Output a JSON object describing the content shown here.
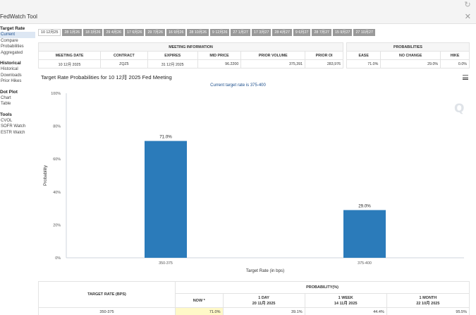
{
  "app": {
    "title": "FedWatch Tool",
    "refresh_icon": "refresh-icon",
    "close_icon": "close-icon"
  },
  "sidebar": {
    "sections": [
      {
        "heading": "Target Rate",
        "items": [
          "Current",
          "Compare",
          "Probabilities",
          "Aggregated"
        ],
        "active": "Current"
      },
      {
        "heading": "Historical",
        "items": [
          "Historical",
          "Downloads",
          "Prior Hikes"
        ]
      },
      {
        "heading": "Dot Plot",
        "items": [
          "Chart",
          "Table"
        ]
      },
      {
        "heading": "Tools",
        "items": [
          "CVOL",
          "SOFR Watch",
          "ESTR Watch"
        ]
      }
    ]
  },
  "tabs": [
    "10 12月25",
    "28 1月26",
    "18 3月26",
    "29 4月26",
    "17 6月26",
    "29 7月26",
    "16 9月26",
    "28 10月26",
    "9 12月26",
    "27 1月27",
    "17 3月27",
    "28 4月27",
    "9 6月27",
    "28 7月27",
    "15 9月27",
    "27 10月27"
  ],
  "active_tab": "10 12月25",
  "meeting_info": {
    "heading": "MEETING INFORMATION",
    "columns": [
      "MEETING DATE",
      "CONTRACT",
      "EXPIRES",
      "MID PRICE",
      "PRIOR VOLUME",
      "PRIOR OI"
    ],
    "row": [
      "10 12月 2025",
      "ZQZ5",
      "31 12月 2025",
      "96.2200",
      "375,391",
      "283,976"
    ]
  },
  "probabilities": {
    "heading": "PROBABILITIES",
    "columns": [
      "EASE",
      "NO CHANGE",
      "HIKE"
    ],
    "row": [
      "71.0%",
      "29.0%",
      "0.0%"
    ]
  },
  "chart": {
    "title": "Target Rate Probabilities for 10 12月 2025 Fed Meeting",
    "subtitle": "Current target rate is 375-400",
    "menu_icon": "menu-icon",
    "logo": "Q"
  },
  "chart_data": {
    "type": "bar",
    "categories": [
      "350-375",
      "375-400"
    ],
    "values": [
      71.0,
      29.0
    ],
    "data_labels": [
      "71.0%",
      "29.0%"
    ],
    "title": "Target Rate Probabilities for 10 12月 2025 Fed Meeting",
    "subtitle": "Current target rate is 375-400",
    "xlabel": "Target Rate (in bps)",
    "ylabel": "Probability",
    "ylim": [
      0,
      100
    ],
    "yticks": [
      "0%",
      "20%",
      "40%",
      "60%",
      "80%",
      "100%"
    ],
    "grid": false,
    "bar_color": "#2b7bba"
  },
  "prob_table": {
    "heading_left": "TARGET RATE (BPS)",
    "heading_right": "PROBABILITY(%)",
    "cols": [
      {
        "label": "NOW *",
        "sub": ""
      },
      {
        "label": "1 DAY",
        "sub": "20 11月 2025"
      },
      {
        "label": "1 WEEK",
        "sub": "14 11月 2025"
      },
      {
        "label": "1 MONTH",
        "sub": "22 10月 2025"
      }
    ],
    "rows": [
      {
        "rate": "350-375",
        "values": [
          "71.0%",
          "39.1%",
          "44.4%",
          "95.5%"
        ]
      }
    ],
    "highlight_color": "#fff9c8"
  }
}
